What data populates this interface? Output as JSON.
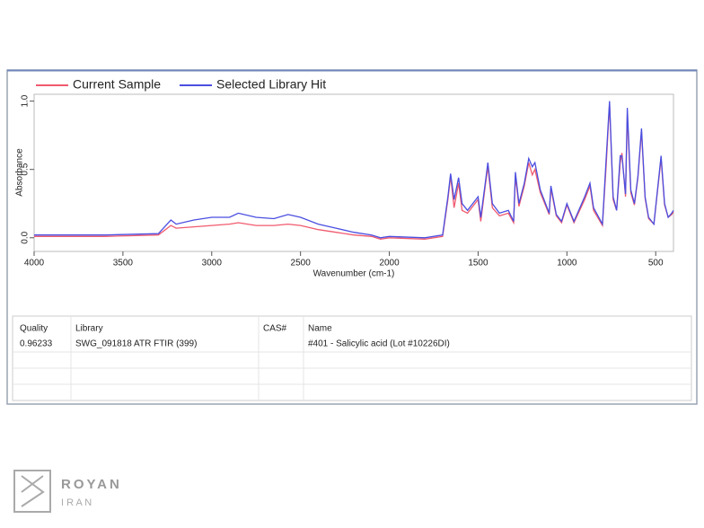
{
  "chart_data": {
    "type": "line",
    "xlabel": "Wavenumber (cm-1)",
    "ylabel": "Absorbance",
    "x": [
      4000,
      3600,
      3300,
      3230,
      3200,
      3100,
      3000,
      2900,
      2850,
      2750,
      2650,
      2570,
      2500,
      2400,
      2300,
      2200,
      2100,
      2050,
      2000,
      1800,
      1700,
      1670,
      1655,
      1635,
      1610,
      1590,
      1560,
      1500,
      1485,
      1460,
      1445,
      1420,
      1380,
      1330,
      1300,
      1290,
      1270,
      1240,
      1215,
      1195,
      1180,
      1150,
      1100,
      1090,
      1060,
      1030,
      1000,
      960,
      900,
      870,
      850,
      800,
      780,
      760,
      740,
      720,
      700,
      690,
      670,
      660,
      640,
      620,
      600,
      580,
      560,
      540,
      510,
      470,
      450,
      430,
      410,
      400
    ],
    "series": [
      {
        "name": "Current Sample",
        "color": "#f05a6e",
        "values": [
          0.01,
          0.01,
          0.02,
          0.09,
          0.07,
          0.08,
          0.09,
          0.1,
          0.11,
          0.09,
          0.09,
          0.1,
          0.09,
          0.06,
          0.04,
          0.02,
          0.01,
          -0.01,
          0.0,
          -0.01,
          0.01,
          0.28,
          0.45,
          0.22,
          0.4,
          0.2,
          0.18,
          0.28,
          0.12,
          0.38,
          0.52,
          0.22,
          0.16,
          0.18,
          0.11,
          0.45,
          0.23,
          0.38,
          0.55,
          0.46,
          0.5,
          0.33,
          0.17,
          0.36,
          0.16,
          0.11,
          0.24,
          0.11,
          0.28,
          0.38,
          0.2,
          0.09,
          0.5,
          0.98,
          0.28,
          0.2,
          0.55,
          0.62,
          0.3,
          0.9,
          0.33,
          0.24,
          0.44,
          0.78,
          0.29,
          0.14,
          0.1,
          0.58,
          0.24,
          0.15,
          0.17,
          0.19
        ]
      },
      {
        "name": "Selected Library Hit",
        "color": "#4a4ee0",
        "values": [
          0.02,
          0.02,
          0.03,
          0.13,
          0.1,
          0.13,
          0.15,
          0.15,
          0.18,
          0.15,
          0.14,
          0.17,
          0.15,
          0.1,
          0.07,
          0.04,
          0.02,
          0.0,
          0.01,
          0.0,
          0.02,
          0.3,
          0.47,
          0.28,
          0.44,
          0.25,
          0.2,
          0.3,
          0.15,
          0.4,
          0.55,
          0.25,
          0.18,
          0.2,
          0.12,
          0.48,
          0.25,
          0.4,
          0.58,
          0.52,
          0.55,
          0.35,
          0.18,
          0.38,
          0.17,
          0.12,
          0.25,
          0.12,
          0.3,
          0.4,
          0.22,
          0.1,
          0.55,
          1.0,
          0.3,
          0.2,
          0.6,
          0.6,
          0.32,
          0.95,
          0.35,
          0.25,
          0.45,
          0.8,
          0.3,
          0.15,
          0.1,
          0.6,
          0.25,
          0.15,
          0.18,
          0.2
        ]
      }
    ],
    "xlim": [
      4000,
      400
    ],
    "xticks": [
      4000,
      3500,
      3000,
      2500,
      2000,
      1500,
      1000,
      500
    ],
    "ylim": [
      -0.1,
      1.05
    ],
    "yticks": [
      {
        "value": 0,
        "label": "0.0"
      },
      {
        "value": 0.5,
        "label": "0.5"
      },
      {
        "value": 1,
        "label": "1.0"
      }
    ],
    "legend": "top-left"
  },
  "table": {
    "columns": [
      "Quality",
      "Library",
      "CAS#",
      "Name"
    ],
    "rows": [
      {
        "quality": "0.96233",
        "library": "SWG_091818 ATR FTIR (399)",
        "name": "#401 - Salicylic acid (Lot #10226DI)"
      }
    ]
  },
  "logo": {
    "name": "ROYAN",
    "country": "I R A N"
  }
}
